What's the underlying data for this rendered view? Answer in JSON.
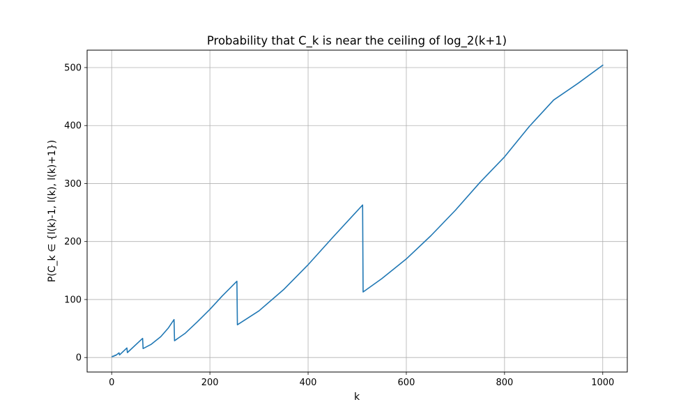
{
  "chart_data": {
    "type": "line",
    "title": "Probability that C_k is near the ceiling of log_2(k+1)",
    "xlabel": "k",
    "ylabel": "P(C_k ∈ {l(k)-1, l(k), l(k)+1})",
    "xlim": [
      -50,
      1050
    ],
    "ylim": [
      -25,
      530
    ],
    "xticks": [
      0,
      200,
      400,
      600,
      800,
      1000
    ],
    "yticks": [
      0,
      100,
      200,
      300,
      400,
      500
    ],
    "grid": true,
    "legend": "none",
    "series": [
      {
        "color": "#1f77b4",
        "points": [
          [
            1,
            1.5
          ],
          [
            3,
            2.5
          ],
          [
            4,
            2.0
          ],
          [
            7,
            4.0
          ],
          [
            8,
            3.5
          ],
          [
            15,
            8.0
          ],
          [
            16,
            4.5
          ],
          [
            31,
            16.5
          ],
          [
            32,
            8.5
          ],
          [
            63,
            33.0
          ],
          [
            64,
            15.5
          ],
          [
            80,
            22.5
          ],
          [
            100,
            36.0
          ],
          [
            115,
            50.5
          ],
          [
            127,
            65.5
          ],
          [
            128,
            29.0
          ],
          [
            150,
            42.0
          ],
          [
            175,
            62.0
          ],
          [
            200,
            83.0
          ],
          [
            225,
            106.0
          ],
          [
            255,
            131.5
          ],
          [
            256,
            56.5
          ],
          [
            300,
            80.5
          ],
          [
            350,
            117.0
          ],
          [
            400,
            160.0
          ],
          [
            450,
            207.0
          ],
          [
            511,
            263.0
          ],
          [
            512,
            113.0
          ],
          [
            550,
            136.0
          ],
          [
            600,
            170.0
          ],
          [
            650,
            210.0
          ],
          [
            700,
            254.0
          ],
          [
            750,
            302.0
          ],
          [
            800,
            346.0
          ],
          [
            850,
            398.0
          ],
          [
            900,
            444.0
          ],
          [
            950,
            473.0
          ],
          [
            1000,
            504.0
          ]
        ]
      }
    ]
  }
}
